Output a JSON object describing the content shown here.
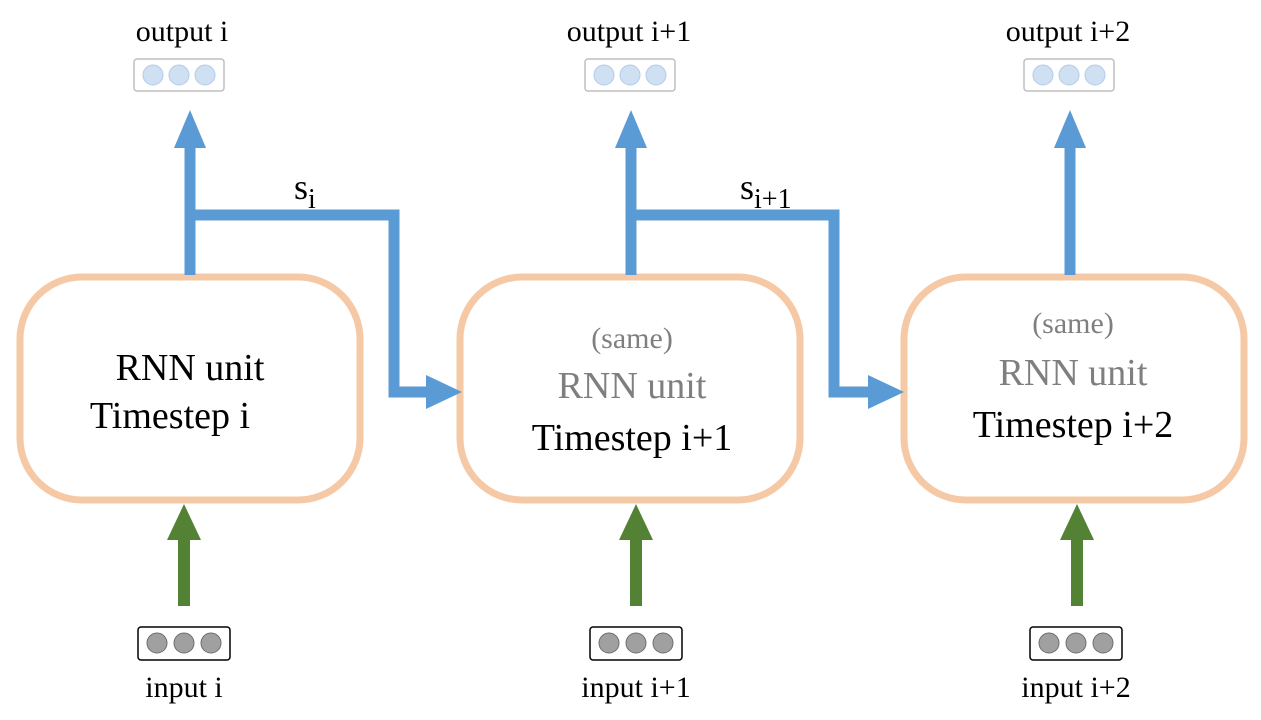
{
  "colors": {
    "box_border": "#f6c9a6",
    "state_arrow": "#5b9bd5",
    "input_arrow": "#548235",
    "output_dot": "#cfe0f3",
    "output_dot_border": "#b4cbe6",
    "input_dot": "#a0a0a0",
    "input_dot_border": "#6e6e6e",
    "text_main": "#000000",
    "text_muted": "#7f7f7f"
  },
  "units": [
    {
      "same_label": "",
      "unit_label": "RNN unit",
      "timestep_label": "Timestep i",
      "output_label": "output i",
      "input_label": "input i"
    },
    {
      "same_label": "(same)",
      "unit_label": "RNN unit",
      "timestep_label": "Timestep i+1",
      "output_label": "output i+1",
      "input_label": "input i+1"
    },
    {
      "same_label": "(same)",
      "unit_label": "RNN unit",
      "timestep_label": "Timestep i+2",
      "output_label": "output i+2",
      "input_label": "input i+2"
    }
  ],
  "states": [
    {
      "base": "s",
      "subscript": "i"
    },
    {
      "base": "s",
      "subscript": "i+1"
    }
  ]
}
